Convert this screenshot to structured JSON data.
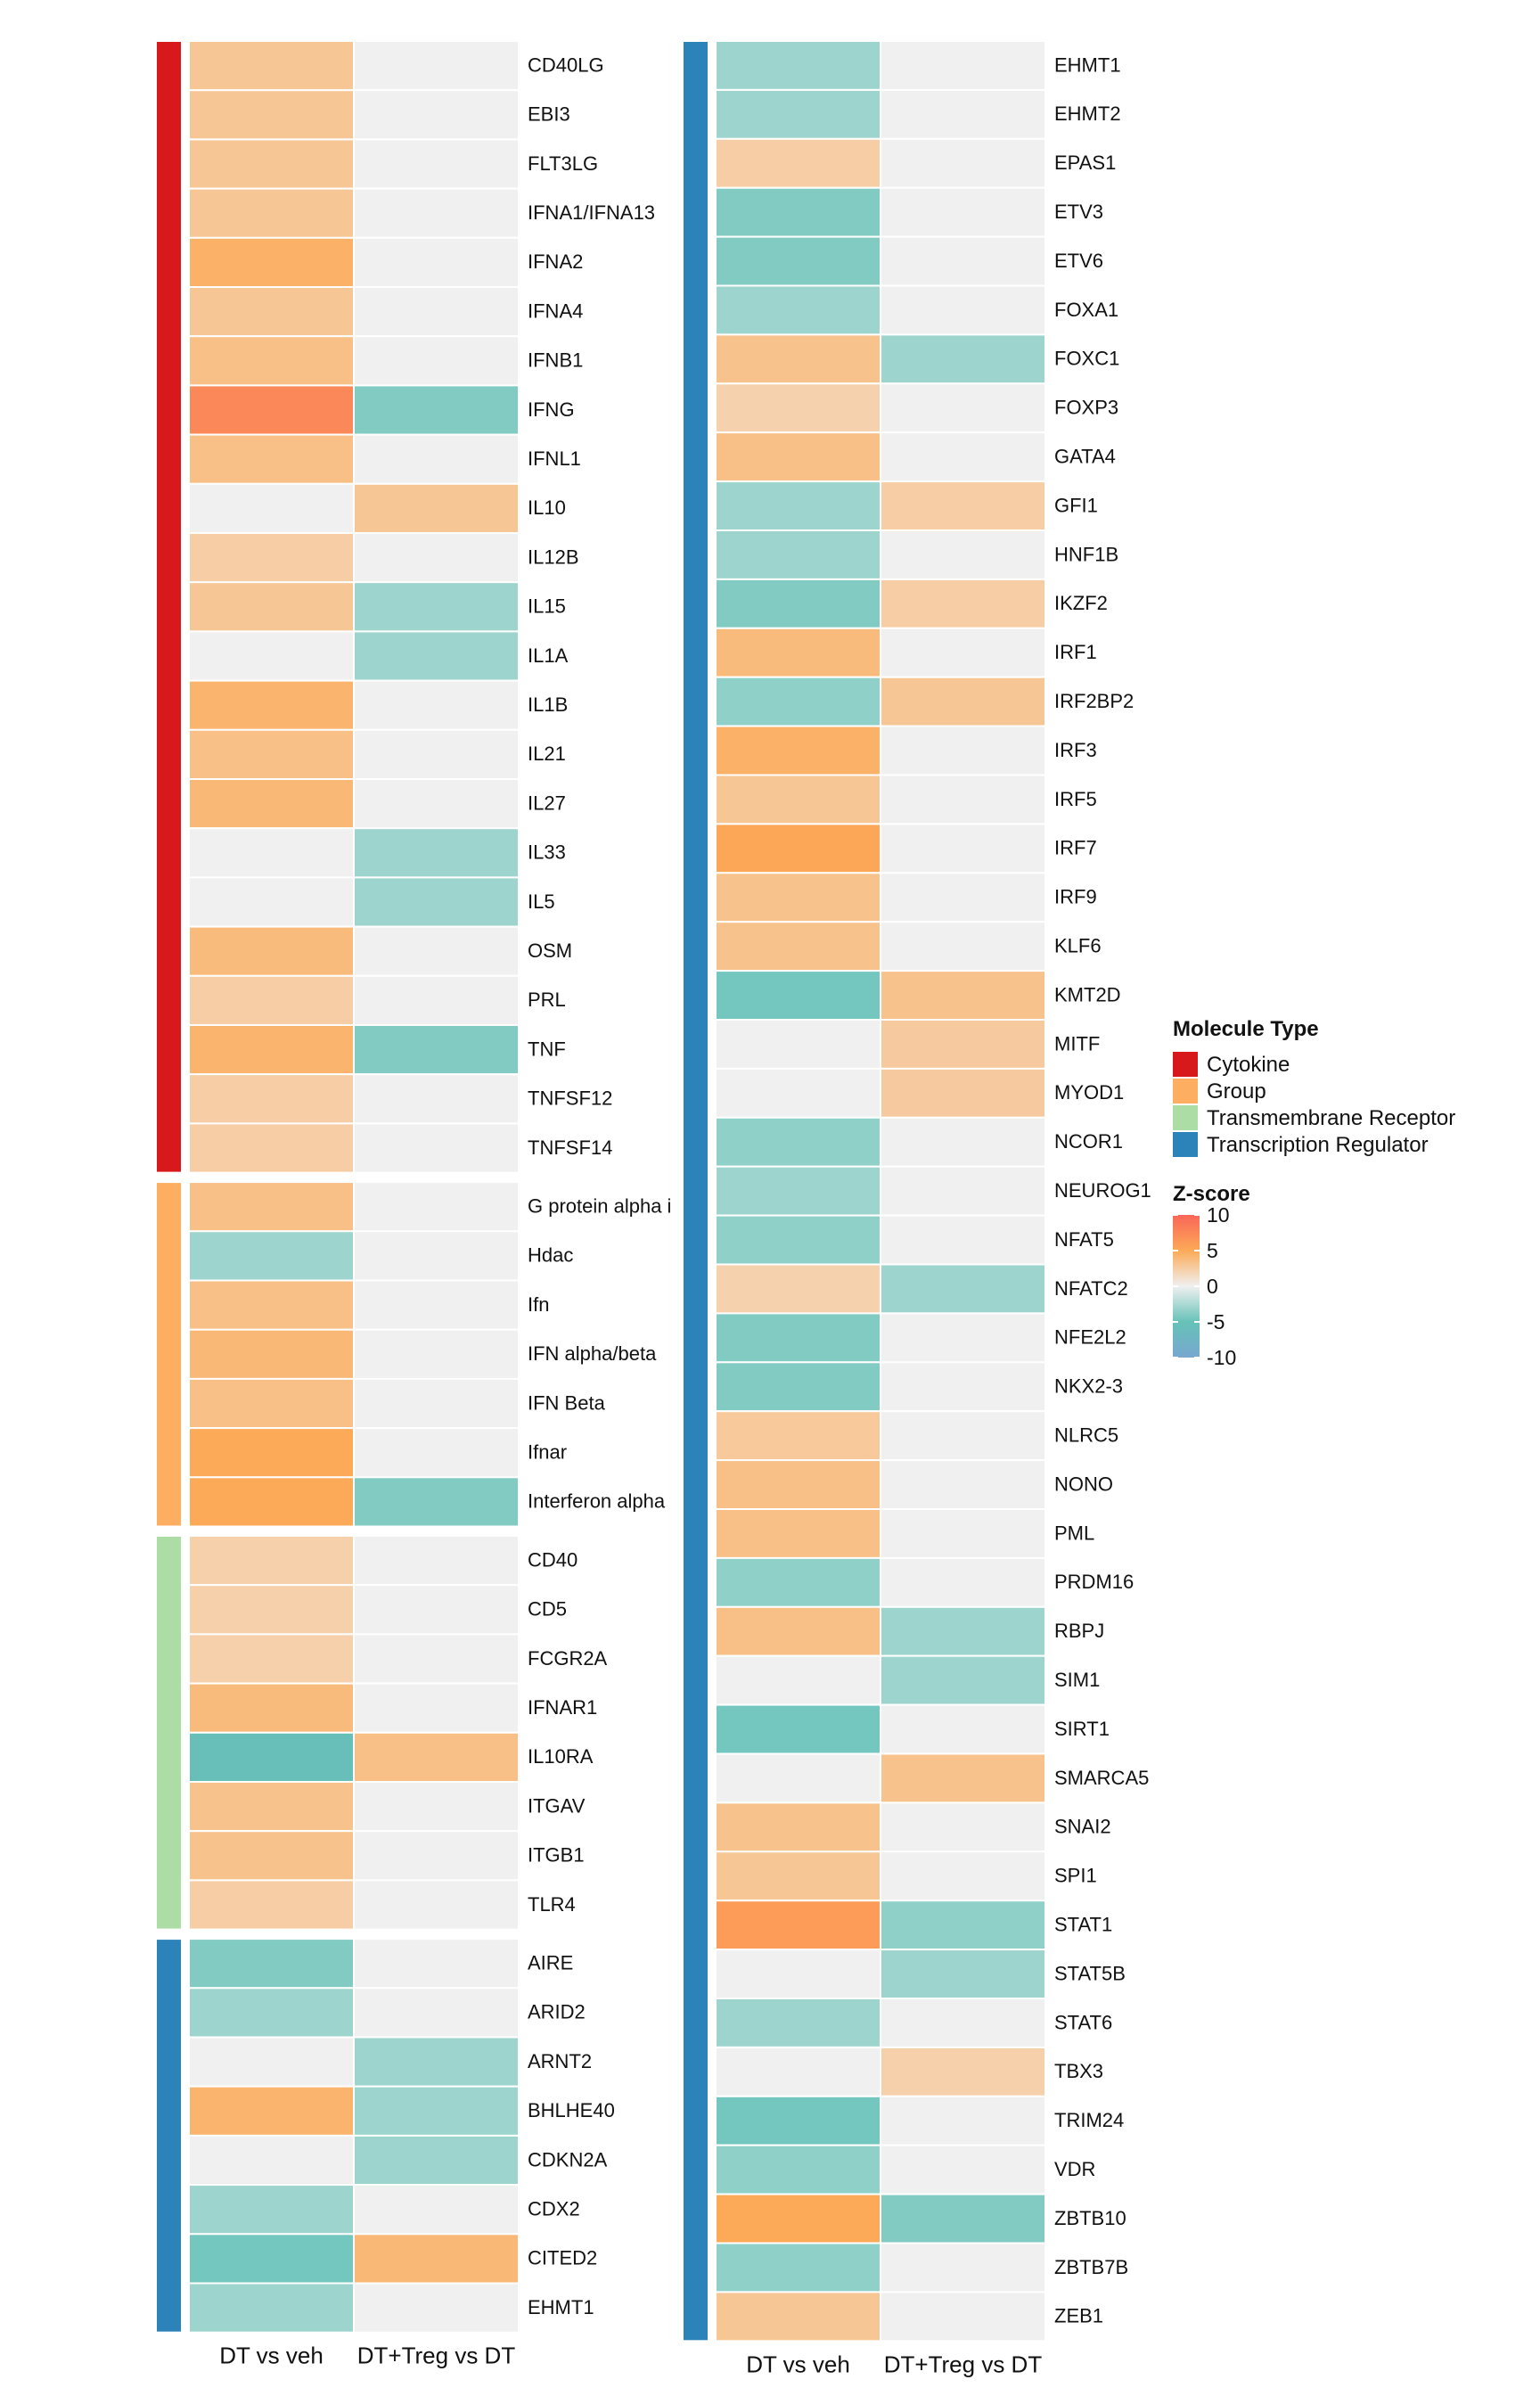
{
  "chart_data": {
    "type": "heatmap",
    "columns": [
      "DT vs veh",
      "DT+Treg vs DT"
    ],
    "legend": {
      "molecule_type_title": "Molecule Type",
      "molecule_types": [
        {
          "name": "Cytokine",
          "color": "#d7191c"
        },
        {
          "name": "Group",
          "color": "#fdae61"
        },
        {
          "name": "Transmembrane Receptor",
          "color": "#abdda4"
        },
        {
          "name": "Transcription Regulator",
          "color": "#2b83ba"
        }
      ],
      "zscore_title": "Z-score",
      "zscore_ticks": [
        10,
        5,
        0,
        -5,
        -10
      ],
      "zscore_range": [
        -10,
        10
      ]
    },
    "panels": [
      {
        "groups": [
          {
            "type": "Cytokine",
            "rows": [
              {
                "label": "CD40LG",
                "values": [
                  3,
                  0
                ]
              },
              {
                "label": "EBI3",
                "values": [
                  3,
                  0
                ]
              },
              {
                "label": "FLT3LG",
                "values": [
                  3,
                  0
                ]
              },
              {
                "label": "IFNA1/IFNA13",
                "values": [
                  3,
                  0
                ]
              },
              {
                "label": "IFNA2",
                "values": [
                  4.5,
                  0
                ]
              },
              {
                "label": "IFNA4",
                "values": [
                  3,
                  0
                ]
              },
              {
                "label": "IFNB1",
                "values": [
                  3.5,
                  0
                ]
              },
              {
                "label": "IFNG",
                "values": [
                  7.5,
                  -4
                ]
              },
              {
                "label": "IFNL1",
                "values": [
                  3.5,
                  0
                ]
              },
              {
                "label": "IL10",
                "values": [
                  0,
                  3
                ]
              },
              {
                "label": "IL12B",
                "values": [
                  2.5,
                  0
                ]
              },
              {
                "label": "IL15",
                "values": [
                  3,
                  -3
                ]
              },
              {
                "label": "IL1A",
                "values": [
                  0,
                  -3
                ]
              },
              {
                "label": "IL1B",
                "values": [
                  4.3,
                  0
                ]
              },
              {
                "label": "IL21",
                "values": [
                  3.5,
                  0
                ]
              },
              {
                "label": "IL27",
                "values": [
                  4,
                  0
                ]
              },
              {
                "label": "IL33",
                "values": [
                  0,
                  -3
                ]
              },
              {
                "label": "IL5",
                "values": [
                  0,
                  -3
                ]
              },
              {
                "label": "OSM",
                "values": [
                  3.8,
                  0
                ]
              },
              {
                "label": "PRL",
                "values": [
                  2.5,
                  0
                ]
              },
              {
                "label": "TNF",
                "values": [
                  4.3,
                  -4
                ]
              },
              {
                "label": "TNFSF12",
                "values": [
                  2.5,
                  0
                ]
              },
              {
                "label": "TNFSF14",
                "values": [
                  2.5,
                  0
                ]
              }
            ]
          },
          {
            "type": "Group",
            "rows": [
              {
                "label": "G protein alpha i",
                "values": [
                  3.5,
                  0
                ]
              },
              {
                "label": "Hdac",
                "values": [
                  -3,
                  0
                ]
              },
              {
                "label": "Ifn",
                "values": [
                  3.5,
                  0
                ]
              },
              {
                "label": "IFN alpha/beta",
                "values": [
                  4,
                  0
                ]
              },
              {
                "label": "IFN Beta",
                "values": [
                  3.5,
                  0
                ]
              },
              {
                "label": "Ifnar",
                "values": [
                  5,
                  0
                ]
              },
              {
                "label": "Interferon alpha",
                "values": [
                  5,
                  -4
                ]
              }
            ]
          },
          {
            "type": "Transmembrane Receptor",
            "rows": [
              {
                "label": "CD40",
                "values": [
                  2.3,
                  0
                ]
              },
              {
                "label": "CD5",
                "values": [
                  2.3,
                  0
                ]
              },
              {
                "label": "FCGR2A",
                "values": [
                  2.3,
                  0
                ]
              },
              {
                "label": "IFNAR1",
                "values": [
                  3.8,
                  0
                ]
              },
              {
                "label": "IL10RA",
                "values": [
                  -5.5,
                  3.5
                ]
              },
              {
                "label": "ITGAV",
                "values": [
                  3.3,
                  0
                ]
              },
              {
                "label": "ITGB1",
                "values": [
                  3.3,
                  0
                ]
              },
              {
                "label": "TLR4",
                "values": [
                  2.5,
                  0
                ]
              }
            ]
          },
          {
            "type": "Transcription Regulator",
            "rows": [
              {
                "label": "AIRE",
                "values": [
                  -4,
                  0
                ]
              },
              {
                "label": "ARID2",
                "values": [
                  -3,
                  0
                ]
              },
              {
                "label": "ARNT2",
                "values": [
                  0,
                  -3
                ]
              },
              {
                "label": "BHLHE40",
                "values": [
                  4.3,
                  -3
                ]
              },
              {
                "label": "CDKN2A",
                "values": [
                  0,
                  -3
                ]
              },
              {
                "label": "CDX2",
                "values": [
                  -3,
                  0
                ]
              },
              {
                "label": "CITED2",
                "values": [
                  -4.5,
                  4
                ]
              },
              {
                "label": "EHMT1",
                "values": [
                  -3,
                  0
                ]
              }
            ]
          }
        ]
      },
      {
        "groups": [
          {
            "type": "Transcription Regulator",
            "rows": [
              {
                "label": "EHMT1",
                "values": [
                  -3,
                  0
                ]
              },
              {
                "label": "EHMT2",
                "values": [
                  -3,
                  0
                ]
              },
              {
                "label": "EPAS1",
                "values": [
                  2.5,
                  0
                ]
              },
              {
                "label": "ETV3",
                "values": [
                  -4,
                  0
                ]
              },
              {
                "label": "ETV6",
                "values": [
                  -4,
                  0
                ]
              },
              {
                "label": "FOXA1",
                "values": [
                  -3,
                  0
                ]
              },
              {
                "label": "FOXC1",
                "values": [
                  3.3,
                  -3
                ]
              },
              {
                "label": "FOXP3",
                "values": [
                  2.2,
                  0
                ]
              },
              {
                "label": "GATA4",
                "values": [
                  3.5,
                  0
                ]
              },
              {
                "label": "GFI1",
                "values": [
                  -3,
                  2.5
                ]
              },
              {
                "label": "HNF1B",
                "values": [
                  -3,
                  0
                ]
              },
              {
                "label": "IKZF2",
                "values": [
                  -4,
                  2.5
                ]
              },
              {
                "label": "IRF1",
                "values": [
                  3.8,
                  0
                ]
              },
              {
                "label": "IRF2BP2",
                "values": [
                  -3.5,
                  3
                ]
              },
              {
                "label": "IRF3",
                "values": [
                  4.5,
                  0
                ]
              },
              {
                "label": "IRF5",
                "values": [
                  3,
                  0
                ]
              },
              {
                "label": "IRF7",
                "values": [
                  5.2,
                  0
                ]
              },
              {
                "label": "IRF9",
                "values": [
                  3.3,
                  0
                ]
              },
              {
                "label": "KLF6",
                "values": [
                  3.3,
                  0
                ]
              },
              {
                "label": "KMT2D",
                "values": [
                  -4.5,
                  3.3
                ]
              },
              {
                "label": "MITF",
                "values": [
                  0,
                  2.7
                ]
              },
              {
                "label": "MYOD1",
                "values": [
                  0,
                  2.7
                ]
              },
              {
                "label": "NCOR1",
                "values": [
                  -3.5,
                  0
                ]
              },
              {
                "label": "NEUROG1",
                "values": [
                  -3,
                  0
                ]
              },
              {
                "label": "NFAT5",
                "values": [
                  -3.5,
                  0
                ]
              },
              {
                "label": "NFATC2",
                "values": [
                  2.2,
                  -3
                ]
              },
              {
                "label": "NFE2L2",
                "values": [
                  -4,
                  0
                ]
              },
              {
                "label": "NKX2-3",
                "values": [
                  -4,
                  0
                ]
              },
              {
                "label": "NLRC5",
                "values": [
                  2.8,
                  0
                ]
              },
              {
                "label": "NONO",
                "values": [
                  3.5,
                  0
                ]
              },
              {
                "label": "PML",
                "values": [
                  3.5,
                  0
                ]
              },
              {
                "label": "PRDM16",
                "values": [
                  -3.5,
                  0
                ]
              },
              {
                "label": "RBPJ",
                "values": [
                  3.5,
                  -3
                ]
              },
              {
                "label": "SIM1",
                "values": [
                  0,
                  -3
                ]
              },
              {
                "label": "SIRT1",
                "values": [
                  -4.5,
                  0
                ]
              },
              {
                "label": "SMARCA5",
                "values": [
                  0,
                  3.3
                ]
              },
              {
                "label": "SNAI2",
                "values": [
                  3.3,
                  0
                ]
              },
              {
                "label": "SPI1",
                "values": [
                  3,
                  0
                ]
              },
              {
                "label": "STAT1",
                "values": [
                  6,
                  -3.5
                ]
              },
              {
                "label": "STAT5B",
                "values": [
                  0,
                  -3
                ]
              },
              {
                "label": "STAT6",
                "values": [
                  -3,
                  0
                ]
              },
              {
                "label": "TBX3",
                "values": [
                  0,
                  2.3
                ]
              },
              {
                "label": "TRIM24",
                "values": [
                  -4.5,
                  0
                ]
              },
              {
                "label": "VDR",
                "values": [
                  -3.5,
                  0
                ]
              },
              {
                "label": "ZBTB10",
                "values": [
                  5,
                  -4
                ]
              },
              {
                "label": "ZBTB7B",
                "values": [
                  -3.5,
                  0
                ]
              },
              {
                "label": "ZEB1",
                "values": [
                  3,
                  0
                ]
              }
            ]
          }
        ]
      }
    ]
  }
}
